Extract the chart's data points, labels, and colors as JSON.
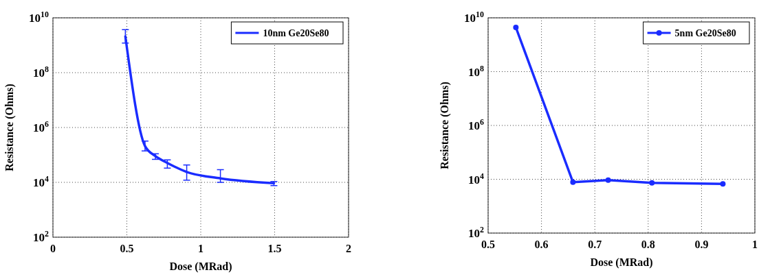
{
  "chart_data": [
    {
      "type": "line",
      "xlabel": "Dose (MRad)",
      "ylabel": "Resistance (Ohms)",
      "log": "y",
      "grid": true,
      "legend": "top right",
      "marker": "none",
      "line_style": "solid",
      "xlim": [
        0,
        2
      ],
      "xticks": [
        0,
        0.5,
        1,
        1.5,
        2
      ],
      "ylim": [
        100,
        10000000000
      ],
      "yticks": [
        {
          "value": 100,
          "label": "10$^{2}$"
        },
        {
          "value": 10000,
          "label": "10$^{4}$"
        },
        {
          "value": 1000000,
          "label": "10$^{6}$"
        },
        {
          "value": 100000000,
          "label": "10$^{8}$"
        },
        {
          "value": 10000000000,
          "label": "10$^{10}$"
        }
      ],
      "x": [
        0.49,
        0.623,
        0.693,
        0.774,
        0.905,
        1.133,
        1.495
      ],
      "series": [
        {
          "name": "10nm Ge20Se80",
          "color": "#1a2cff",
          "values": [
            2100000000,
            210000,
            91000,
            51000,
            24000,
            14000,
            9300
          ],
          "errors": [
            [
              1200000000,
              3700000000
            ],
            [
              140000,
              320000
            ],
            [
              69000,
              110000
            ],
            [
              33000,
              66000
            ],
            [
              12000,
              43000
            ],
            [
              10000,
              29000
            ],
            [
              7600,
              10700
            ]
          ]
        }
      ]
    },
    {
      "type": "line",
      "xlabel": "Dose (MRad)",
      "ylabel": "Resistance (Ohms)",
      "log": "y",
      "grid": true,
      "legend": "top right",
      "marker": "circle",
      "line_style": "solid",
      "xlim": [
        0.5,
        1
      ],
      "xticks": [
        0.5,
        0.6,
        0.7,
        0.8,
        0.9,
        1
      ],
      "ylim": [
        100,
        10000000000
      ],
      "yticks": [
        {
          "value": 100,
          "label": "10$^{2}$"
        },
        {
          "value": 10000,
          "label": "10$^{4}$"
        },
        {
          "value": 1000000,
          "label": "10$^{6}$"
        },
        {
          "value": 100000000,
          "label": "10$^{8}$"
        },
        {
          "value": 10000000000,
          "label": "10$^{10}$"
        }
      ],
      "x": [
        0.552,
        0.659,
        0.725,
        0.807,
        0.94
      ],
      "series": [
        {
          "name": "5nm Ge20Se80",
          "color": "#1a2cff",
          "values": [
            4400000000,
            7800,
            9300,
            7400,
            6700
          ]
        }
      ]
    }
  ]
}
